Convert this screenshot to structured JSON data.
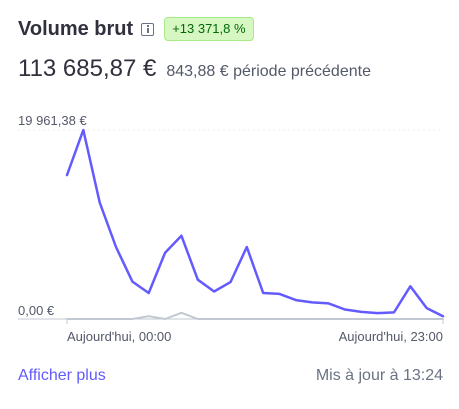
{
  "header": {
    "title": "Volume brut",
    "change_badge": "+13 371,8 %"
  },
  "summary": {
    "value": "113 685,87 €",
    "previous": "843,88 € période précédente"
  },
  "chart_data": {
    "type": "line",
    "y_tick_labels": [
      "19 961,38 €",
      "0,00 €"
    ],
    "x_tick_labels": [
      "Aujourd'hui, 00:00",
      "Aujourd'hui, 23:00"
    ],
    "x": [
      "00:00",
      "01:00",
      "02:00",
      "03:00",
      "04:00",
      "05:00",
      "06:00",
      "07:00",
      "08:00",
      "09:00",
      "10:00",
      "11:00",
      "12:00",
      "13:00",
      "14:00",
      "15:00",
      "16:00",
      "17:00",
      "18:00",
      "19:00",
      "20:00",
      "21:00",
      "22:00",
      "23:00"
    ],
    "ylim": [
      0,
      19961.38
    ],
    "series": [
      {
        "values": [
          15200,
          19961.38,
          12300,
          7600,
          3950,
          2750,
          7000,
          8800,
          4150,
          2900,
          3900,
          7600,
          2750,
          2650,
          2000,
          1750,
          1650,
          1000,
          750,
          620,
          700,
          3450,
          1150,
          300
        ],
        "color": "#635bff"
      },
      {
        "values": [
          0,
          0,
          0,
          0,
          0,
          300,
          0,
          650,
          0,
          0,
          0,
          0,
          0,
          0,
          0,
          0,
          0,
          0,
          0,
          0,
          0,
          0,
          0,
          0
        ],
        "color": "#c0c8d2"
      }
    ]
  },
  "footer": {
    "more_link": "Afficher plus",
    "updated": "Mis à jour à 13:24"
  }
}
